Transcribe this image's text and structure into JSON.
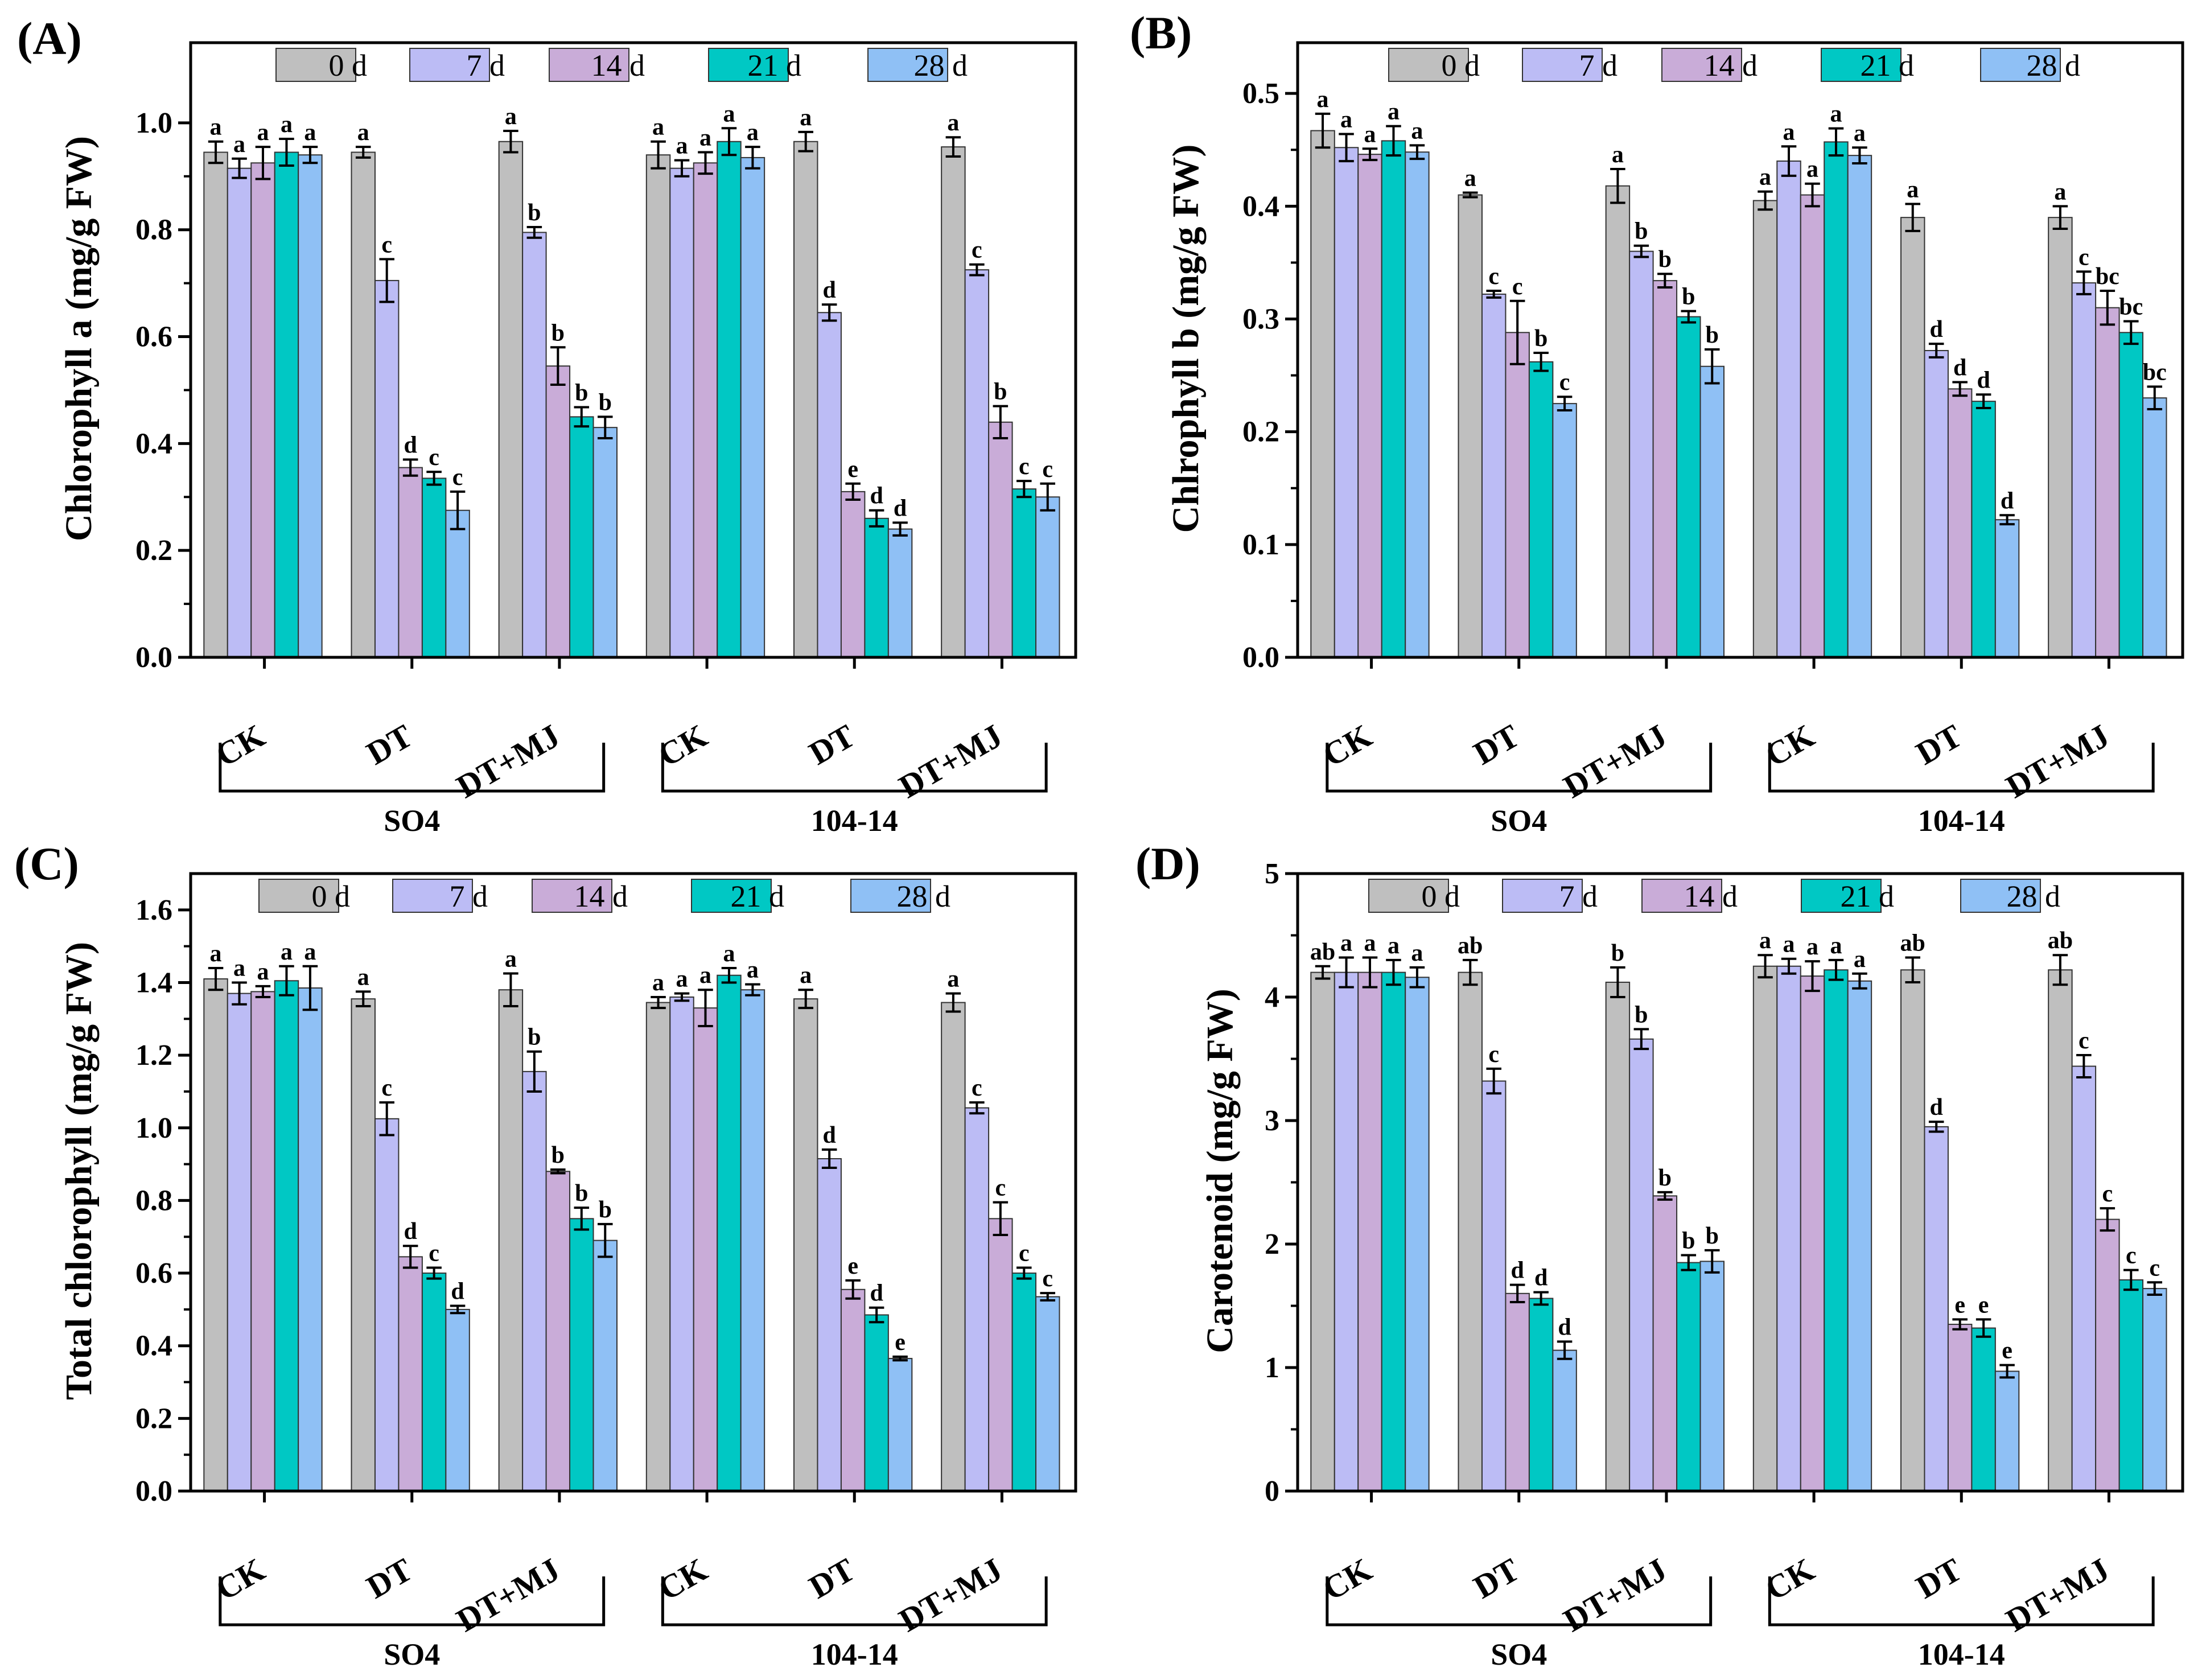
{
  "legend": {
    "labels": [
      "0 d",
      "7 d",
      "14 d",
      "21 d",
      "28 d"
    ],
    "colors": [
      "#bfbfbf",
      "#bcbcf5",
      "#c9acd8",
      "#00c8c4",
      "#8fc0f5"
    ]
  },
  "categories": [
    "CK",
    "DT",
    "DT+MJ",
    "CK",
    "DT",
    "DT+MJ"
  ],
  "groups": [
    "SO4",
    "104-14"
  ],
  "chart_data": [
    {
      "type": "bar",
      "panel": "(A)",
      "ylabel": "Chlorophyll a (mg/g FW)",
      "ylim": [
        0,
        1.15
      ],
      "yticks": [
        0.0,
        0.2,
        0.4,
        0.6,
        0.8,
        1.0
      ],
      "tick_labels": [
        "0.0",
        "0.2",
        "0.4",
        "0.6",
        "0.8",
        "1.0"
      ],
      "categories": [
        "CK",
        "DT",
        "DT+MJ",
        "CK",
        "DT",
        "DT+MJ"
      ],
      "series": [
        {
          "name": "0 d",
          "values": [
            0.945,
            0.945,
            0.965,
            0.94,
            0.965,
            0.955
          ],
          "errors": [
            0.02,
            0.01,
            0.02,
            0.025,
            0.018,
            0.018
          ],
          "letters": [
            "a",
            "a",
            "a",
            "a",
            "a",
            "a"
          ]
        },
        {
          "name": "7 d",
          "values": [
            0.915,
            0.705,
            0.795,
            0.915,
            0.645,
            0.725
          ],
          "errors": [
            0.018,
            0.04,
            0.01,
            0.015,
            0.015,
            0.01
          ],
          "letters": [
            "a",
            "c",
            "b",
            "a",
            "d",
            "c"
          ]
        },
        {
          "name": "14 d",
          "values": [
            0.925,
            0.355,
            0.545,
            0.925,
            0.31,
            0.44
          ],
          "errors": [
            0.03,
            0.015,
            0.035,
            0.02,
            0.015,
            0.03
          ],
          "letters": [
            "a",
            "d",
            "b",
            "a",
            "e",
            "b"
          ]
        },
        {
          "name": "21 d",
          "values": [
            0.945,
            0.335,
            0.45,
            0.965,
            0.26,
            0.315
          ],
          "errors": [
            0.025,
            0.012,
            0.018,
            0.025,
            0.015,
            0.015
          ],
          "letters": [
            "a",
            "c",
            "b",
            "a",
            "d",
            "c"
          ]
        },
        {
          "name": "28 d",
          "values": [
            0.94,
            0.275,
            0.43,
            0.935,
            0.24,
            0.3
          ],
          "errors": [
            0.015,
            0.035,
            0.02,
            0.02,
            0.012,
            0.025
          ],
          "letters": [
            "a",
            "c",
            "b",
            "a",
            "d",
            "c"
          ]
        }
      ]
    },
    {
      "type": "bar",
      "panel": "(B)",
      "ylabel": "Chlrophyll b (mg/g FW)",
      "ylim": [
        0,
        0.545
      ],
      "yticks": [
        0.0,
        0.1,
        0.2,
        0.3,
        0.4,
        0.5
      ],
      "tick_labels": [
        "0.0",
        "0.1",
        "0.2",
        "0.3",
        "0.4",
        "0.5"
      ],
      "categories": [
        "CK",
        "DT",
        "DT+MJ",
        "CK",
        "DT",
        "DT+MJ"
      ],
      "series": [
        {
          "name": "0 d",
          "values": [
            0.467,
            0.41,
            0.418,
            0.405,
            0.39,
            0.39
          ],
          "errors": [
            0.015,
            0.002,
            0.015,
            0.008,
            0.012,
            0.01
          ],
          "letters": [
            "a",
            "a",
            "a",
            "a",
            "a",
            "a"
          ]
        },
        {
          "name": "7 d",
          "values": [
            0.452,
            0.322,
            0.36,
            0.44,
            0.272,
            0.332
          ],
          "errors": [
            0.012,
            0.003,
            0.005,
            0.013,
            0.006,
            0.01
          ],
          "letters": [
            "a",
            "c",
            "b",
            "a",
            "d",
            "c"
          ]
        },
        {
          "name": "14 d",
          "values": [
            0.446,
            0.288,
            0.334,
            0.41,
            0.238,
            0.31
          ],
          "errors": [
            0.005,
            0.028,
            0.006,
            0.01,
            0.006,
            0.015
          ],
          "letters": [
            "a",
            "c",
            "b",
            "a",
            "d",
            "bc"
          ]
        },
        {
          "name": "21 d",
          "values": [
            0.458,
            0.262,
            0.302,
            0.457,
            0.227,
            0.288
          ],
          "errors": [
            0.013,
            0.008,
            0.005,
            0.012,
            0.006,
            0.01
          ],
          "letters": [
            "a",
            "b",
            "b",
            "a",
            "d",
            "bc"
          ]
        },
        {
          "name": "28 d",
          "values": [
            0.448,
            0.225,
            0.258,
            0.445,
            0.122,
            0.23
          ],
          "errors": [
            0.006,
            0.006,
            0.015,
            0.007,
            0.004,
            0.01
          ],
          "letters": [
            "a",
            "c",
            "b",
            "a",
            "d",
            "bc"
          ]
        }
      ]
    },
    {
      "type": "bar",
      "panel": "(C)",
      "ylabel": "Total chlorophyll (mg/g FW)",
      "ylim": [
        0,
        1.7
      ],
      "yticks": [
        0.0,
        0.2,
        0.4,
        0.6,
        0.8,
        1.0,
        1.2,
        1.4,
        1.6
      ],
      "tick_labels": [
        "0.0",
        "0.2",
        "0.4",
        "0.6",
        "0.8",
        "1.0",
        "1.2",
        "1.4",
        "1.6"
      ],
      "categories": [
        "CK",
        "DT",
        "DT+MJ",
        "CK",
        "DT",
        "DT+MJ"
      ],
      "series": [
        {
          "name": "0 d",
          "values": [
            1.41,
            1.355,
            1.38,
            1.345,
            1.355,
            1.345
          ],
          "errors": [
            0.03,
            0.02,
            0.045,
            0.015,
            0.025,
            0.025
          ],
          "letters": [
            "a",
            "a",
            "a",
            "a",
            "a",
            "a"
          ]
        },
        {
          "name": "7 d",
          "values": [
            1.37,
            1.025,
            1.155,
            1.36,
            0.915,
            1.055
          ],
          "errors": [
            0.03,
            0.045,
            0.055,
            0.01,
            0.025,
            0.015
          ],
          "letters": [
            "a",
            "c",
            "b",
            "a",
            "d",
            "c"
          ]
        },
        {
          "name": "14 d",
          "values": [
            1.375,
            0.645,
            0.88,
            1.33,
            0.555,
            0.75
          ],
          "errors": [
            0.015,
            0.03,
            0.005,
            0.05,
            0.025,
            0.045
          ],
          "letters": [
            "a",
            "d",
            "b",
            "a",
            "e",
            "c"
          ]
        },
        {
          "name": "21 d",
          "values": [
            1.405,
            0.6,
            0.75,
            1.42,
            0.485,
            0.6
          ],
          "errors": [
            0.04,
            0.015,
            0.03,
            0.02,
            0.02,
            0.015
          ],
          "letters": [
            "a",
            "c",
            "b",
            "a",
            "d",
            "c"
          ]
        },
        {
          "name": "28 d",
          "values": [
            1.385,
            0.5,
            0.69,
            1.38,
            0.365,
            0.535
          ],
          "errors": [
            0.06,
            0.01,
            0.045,
            0.015,
            0.005,
            0.01
          ],
          "letters": [
            "a",
            "d",
            "b",
            "a",
            "e",
            "c"
          ]
        }
      ]
    },
    {
      "type": "bar",
      "panel": "(D)",
      "ylabel": "Carotenoid (mg/g FW)",
      "ylim": [
        0,
        5
      ],
      "yticks": [
        0,
        1,
        2,
        3,
        4,
        5
      ],
      "tick_labels": [
        "0",
        "1",
        "2",
        "3",
        "4",
        "5"
      ],
      "categories": [
        "CK",
        "DT",
        "DT+MJ",
        "CK",
        "DT",
        "DT+MJ"
      ],
      "series": [
        {
          "name": "0 d",
          "values": [
            4.2,
            4.2,
            4.12,
            4.25,
            4.22,
            4.22
          ],
          "errors": [
            0.05,
            0.1,
            0.12,
            0.09,
            0.1,
            0.12
          ],
          "letters": [
            "ab",
            "ab",
            "b",
            "a",
            "ab",
            "ab"
          ]
        },
        {
          "name": "7 d",
          "values": [
            4.2,
            3.32,
            3.66,
            4.25,
            2.95,
            3.44
          ],
          "errors": [
            0.12,
            0.1,
            0.08,
            0.06,
            0.04,
            0.09
          ],
          "letters": [
            "a",
            "c",
            "b",
            "a",
            "d",
            "c"
          ]
        },
        {
          "name": "14 d",
          "values": [
            4.2,
            1.6,
            2.39,
            4.17,
            1.35,
            2.2
          ],
          "errors": [
            0.12,
            0.07,
            0.03,
            0.12,
            0.04,
            0.09
          ],
          "letters": [
            "a",
            "d",
            "b",
            "a",
            "e",
            "c"
          ]
        },
        {
          "name": "21 d",
          "values": [
            4.2,
            1.56,
            1.85,
            4.22,
            1.32,
            1.71
          ],
          "errors": [
            0.1,
            0.05,
            0.06,
            0.08,
            0.07,
            0.08
          ],
          "letters": [
            "a",
            "d",
            "b",
            "a",
            "e",
            "c"
          ]
        },
        {
          "name": "28 d",
          "values": [
            4.16,
            1.14,
            1.86,
            4.13,
            0.97,
            1.64
          ],
          "errors": [
            0.08,
            0.07,
            0.09,
            0.06,
            0.05,
            0.05
          ],
          "letters": [
            "a",
            "d",
            "b",
            "a",
            "e",
            "c"
          ]
        }
      ]
    }
  ]
}
